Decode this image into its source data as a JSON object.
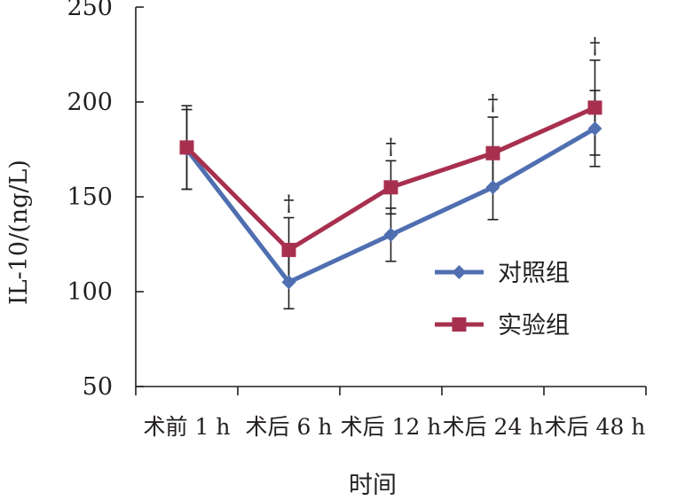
{
  "chart_data": {
    "type": "line",
    "title": "",
    "xlabel": "时间",
    "ylabel": "IL-10/(ng/L)",
    "ylim": [
      50,
      250
    ],
    "yticks": [
      50,
      100,
      150,
      200,
      250
    ],
    "categories": [
      "术前 1 h",
      "术后 6 h",
      "术后 12 h",
      "术后 24 h",
      "术后 48 h"
    ],
    "series": [
      {
        "name": "对照组",
        "color": "#4f6fb1",
        "marker": "diamond",
        "values": [
          175,
          105,
          130,
          155,
          186
        ],
        "error": [
          21,
          14,
          14,
          17,
          20
        ]
      },
      {
        "name": "实验组",
        "color": "#a8304f",
        "marker": "square",
        "values": [
          176,
          122,
          155,
          173,
          197
        ],
        "error": [
          22,
          17,
          14,
          19,
          25
        ]
      }
    ],
    "significance": {
      "symbol": "†",
      "categories": [
        "术后 6 h",
        "术后 12 h",
        "术后 24 h",
        "术后 48 h"
      ]
    },
    "grid": false,
    "legend_position": "right-center"
  }
}
